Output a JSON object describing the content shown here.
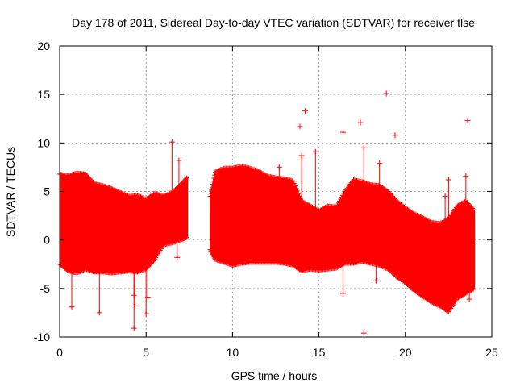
{
  "chart_data": {
    "type": "scatter",
    "title": "Day 178 of 2011, Sidereal Day-to-day VTEC variation (SDTVAR) for receiver tlse",
    "xlabel": "GPS time / hours",
    "ylabel": "SDTVAR / TECUs",
    "xlim": [
      0,
      25
    ],
    "ylim": [
      -10,
      20
    ],
    "xticks": [
      0,
      5,
      10,
      15,
      20,
      25
    ],
    "yticks": [
      -10,
      -5,
      0,
      5,
      10,
      15,
      20
    ],
    "xtick_labels": [
      "0",
      "5",
      "10",
      "15",
      "20",
      "25"
    ],
    "ytick_labels": [
      "-10",
      "-5",
      "0",
      "5",
      "10",
      "15",
      "20"
    ],
    "grid": true,
    "marker": "+",
    "color": "#ff0000",
    "series": [
      {
        "name": "SDTVAR",
        "envelope": [
          {
            "x": 0.0,
            "lo": -2.5,
            "hi": 6.8
          },
          {
            "x": 0.5,
            "lo": -3.2,
            "hi": 6.6
          },
          {
            "x": 1.0,
            "lo": -3.4,
            "hi": 6.9
          },
          {
            "x": 1.5,
            "lo": -3.0,
            "hi": 6.8
          },
          {
            "x": 2.0,
            "lo": -3.3,
            "hi": 5.8
          },
          {
            "x": 2.5,
            "lo": -3.3,
            "hi": 5.6
          },
          {
            "x": 3.0,
            "lo": -3.4,
            "hi": 5.3
          },
          {
            "x": 3.5,
            "lo": -3.3,
            "hi": 4.9
          },
          {
            "x": 4.0,
            "lo": -3.2,
            "hi": 4.5
          },
          {
            "x": 4.5,
            "lo": -3.3,
            "hi": 4.6
          },
          {
            "x": 5.0,
            "lo": -3.0,
            "hi": 4.2
          },
          {
            "x": 5.5,
            "lo": -2.0,
            "hi": 4.8
          },
          {
            "x": 6.0,
            "lo": -0.5,
            "hi": 4.5
          },
          {
            "x": 6.5,
            "lo": -0.3,
            "hi": 4.9
          },
          {
            "x": 7.0,
            "lo": 0.0,
            "hi": 5.7
          },
          {
            "x": 7.4,
            "lo": 0.3,
            "hi": 6.5
          },
          {
            "x": 8.7,
            "lo": -1.0,
            "hi": 4.5
          },
          {
            "x": 9.0,
            "lo": -2.0,
            "hi": 7.0
          },
          {
            "x": 9.5,
            "lo": -2.3,
            "hi": 7.4
          },
          {
            "x": 10.0,
            "lo": -2.6,
            "hi": 7.4
          },
          {
            "x": 10.5,
            "lo": -2.4,
            "hi": 7.6
          },
          {
            "x": 11.0,
            "lo": -2.3,
            "hi": 7.4
          },
          {
            "x": 11.5,
            "lo": -2.3,
            "hi": 7.1
          },
          {
            "x": 12.0,
            "lo": -2.3,
            "hi": 6.6
          },
          {
            "x": 12.5,
            "lo": -2.3,
            "hi": 6.4
          },
          {
            "x": 13.0,
            "lo": -2.4,
            "hi": 6.3
          },
          {
            "x": 13.5,
            "lo": -2.6,
            "hi": 6.1
          },
          {
            "x": 14.0,
            "lo": -3.2,
            "hi": 4.0
          },
          {
            "x": 14.5,
            "lo": -3.0,
            "hi": 3.5
          },
          {
            "x": 15.0,
            "lo": -3.1,
            "hi": 3.0
          },
          {
            "x": 15.5,
            "lo": -3.0,
            "hi": 3.5
          },
          {
            "x": 16.0,
            "lo": -2.9,
            "hi": 3.4
          },
          {
            "x": 16.5,
            "lo": -2.4,
            "hi": 5.0
          },
          {
            "x": 17.0,
            "lo": -2.4,
            "hi": 6.2
          },
          {
            "x": 17.5,
            "lo": -2.2,
            "hi": 6.0
          },
          {
            "x": 18.0,
            "lo": -2.4,
            "hi": 5.7
          },
          {
            "x": 18.5,
            "lo": -2.6,
            "hi": 5.6
          },
          {
            "x": 19.0,
            "lo": -3.0,
            "hi": 5.0
          },
          {
            "x": 19.5,
            "lo": -3.8,
            "hi": 4.0
          },
          {
            "x": 20.0,
            "lo": -4.4,
            "hi": 3.3
          },
          {
            "x": 20.5,
            "lo": -5.2,
            "hi": 2.7
          },
          {
            "x": 21.0,
            "lo": -5.8,
            "hi": 2.3
          },
          {
            "x": 21.5,
            "lo": -6.4,
            "hi": 1.8
          },
          {
            "x": 22.0,
            "lo": -6.8,
            "hi": 1.7
          },
          {
            "x": 22.5,
            "lo": -7.4,
            "hi": 2.2
          },
          {
            "x": 23.0,
            "lo": -6.0,
            "hi": 3.5
          },
          {
            "x": 23.5,
            "lo": -5.5,
            "hi": 4.0
          },
          {
            "x": 24.0,
            "lo": -5.0,
            "hi": 3.0
          }
        ],
        "outliers": [
          {
            "x": 4.3,
            "y": -9.1
          },
          {
            "x": 4.35,
            "y": -6.8
          },
          {
            "x": 4.3,
            "y": -5.7
          },
          {
            "x": 5.0,
            "y": -7.6
          },
          {
            "x": 6.5,
            "y": 10.1
          },
          {
            "x": 6.9,
            "y": 8.2
          },
          {
            "x": 6.8,
            "y": -1.8
          },
          {
            "x": 12.7,
            "y": 7.5
          },
          {
            "x": 13.9,
            "y": 11.7
          },
          {
            "x": 14.2,
            "y": 13.3
          },
          {
            "x": 14.0,
            "y": 8.7
          },
          {
            "x": 14.8,
            "y": 9.1
          },
          {
            "x": 16.4,
            "y": 11.1
          },
          {
            "x": 16.4,
            "y": -5.5
          },
          {
            "x": 17.4,
            "y": 12.1
          },
          {
            "x": 17.6,
            "y": 9.5
          },
          {
            "x": 17.6,
            "y": -9.6
          },
          {
            "x": 18.5,
            "y": 7.9
          },
          {
            "x": 18.9,
            "y": 15.1
          },
          {
            "x": 19.4,
            "y": 10.8
          },
          {
            "x": 18.3,
            "y": -4.2
          },
          {
            "x": 23.6,
            "y": 12.3
          },
          {
            "x": 22.5,
            "y": 6.2
          },
          {
            "x": 22.3,
            "y": 4.5
          },
          {
            "x": 23.5,
            "y": 6.6
          },
          {
            "x": 23.7,
            "y": -6.1
          },
          {
            "x": 2.3,
            "y": -7.5
          },
          {
            "x": 0.7,
            "y": -6.9
          },
          {
            "x": 5.1,
            "y": -5.9
          }
        ]
      }
    ]
  }
}
